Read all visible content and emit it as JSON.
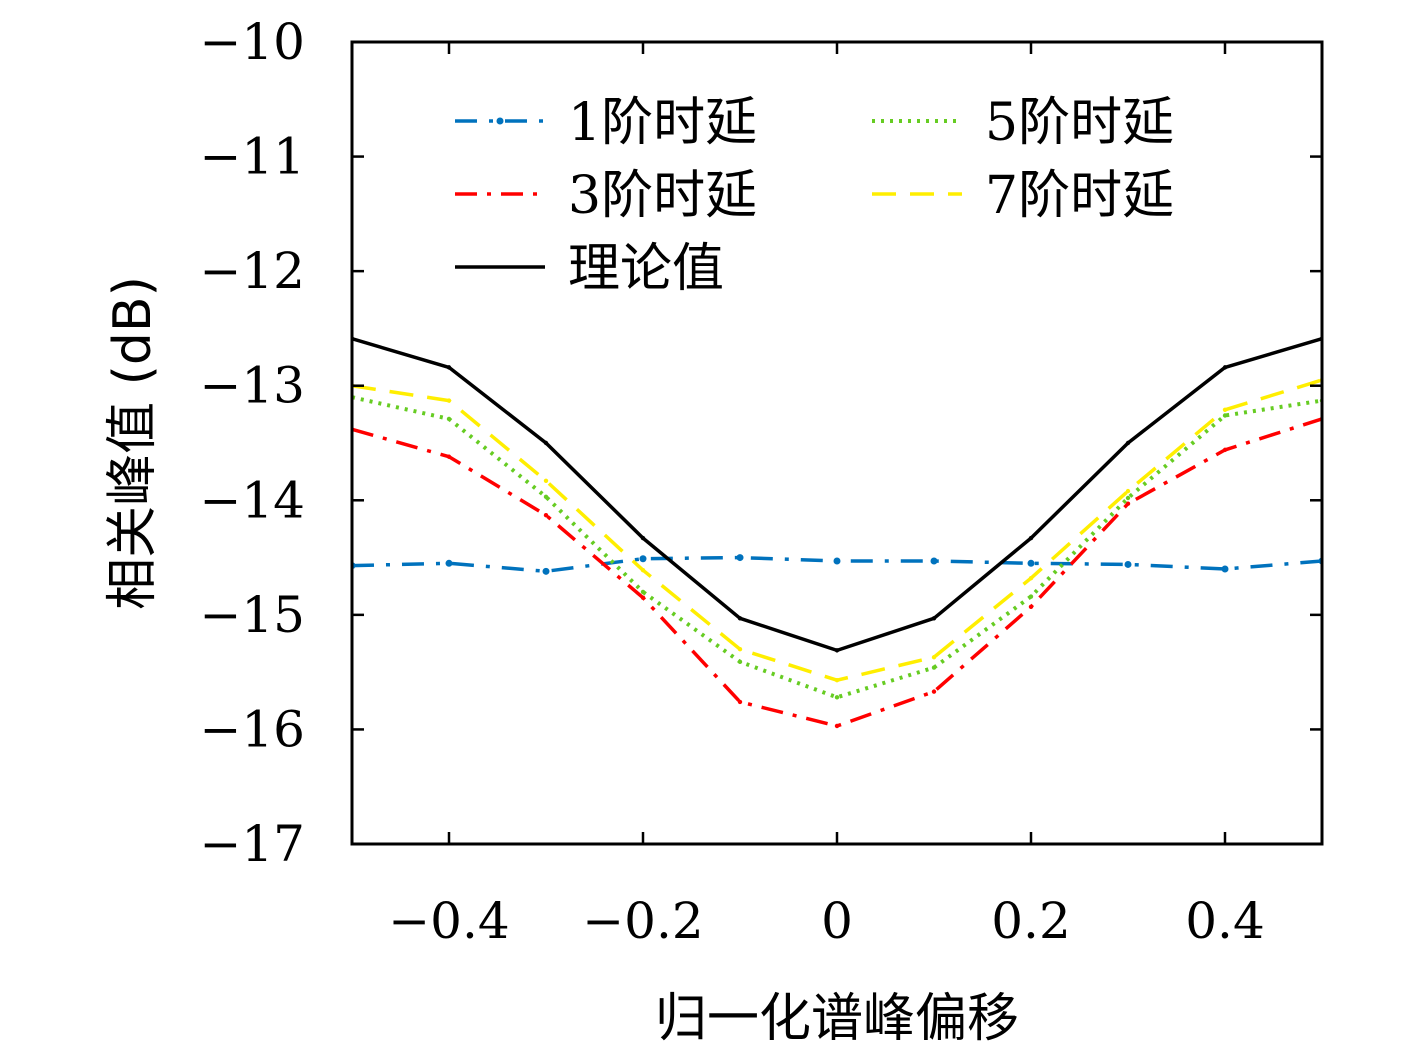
{
  "chart_data": {
    "type": "line",
    "title": "",
    "xlabel": "归一化谱峰偏移",
    "ylabel": "相关峰值 (dB)",
    "xlim": [
      -0.5,
      0.5
    ],
    "ylim": [
      -17,
      -10
    ],
    "xticks": [
      -0.4,
      -0.2,
      0,
      0.2,
      0.4
    ],
    "xtick_labels": [
      "−0.4",
      "−0.2",
      "0",
      "0.2",
      "0.4"
    ],
    "yticks": [
      -10,
      -11,
      -12,
      -13,
      -14,
      -15,
      -16,
      -17
    ],
    "ytick_labels": [
      "−10",
      "−11",
      "−12",
      "−13",
      "−14",
      "−15",
      "−16",
      "−17"
    ],
    "grid": false,
    "legend_position": "top",
    "x": [
      -0.5,
      -0.4,
      -0.3,
      -0.2,
      -0.1,
      0,
      0.1,
      0.2,
      0.3,
      0.4,
      0.5
    ],
    "series": [
      {
        "name": "1阶时延",
        "color": "#0072BD",
        "style": "dash-dot-marker",
        "values": [
          -14.57,
          -14.55,
          -14.62,
          -14.51,
          -14.5,
          -14.53,
          -14.53,
          -14.55,
          -14.56,
          -14.6,
          -14.53
        ]
      },
      {
        "name": "3阶时延",
        "color": "#FF0000",
        "style": "dash-dot",
        "values": [
          -13.38,
          -13.62,
          -14.13,
          -14.85,
          -15.76,
          -15.97,
          -15.67,
          -14.93,
          -14.03,
          -13.56,
          -13.29
        ]
      },
      {
        "name": "理论值",
        "color": "#000000",
        "style": "solid",
        "values": [
          -12.59,
          -12.84,
          -13.5,
          -14.33,
          -15.03,
          -15.31,
          -15.03,
          -14.33,
          -13.5,
          -12.84,
          -12.59
        ]
      },
      {
        "name": "5阶时延",
        "color": "#66CC22",
        "style": "dotted",
        "values": [
          -13.1,
          -13.29,
          -13.97,
          -14.8,
          -15.41,
          -15.72,
          -15.46,
          -14.84,
          -13.98,
          -13.26,
          -13.13
        ]
      },
      {
        "name": "7阶时延",
        "color": "#FFEE00",
        "style": "dashed",
        "values": [
          -13.0,
          -13.13,
          -13.83,
          -14.61,
          -15.3,
          -15.57,
          -15.37,
          -14.68,
          -13.92,
          -13.21,
          -12.95
        ]
      }
    ]
  }
}
